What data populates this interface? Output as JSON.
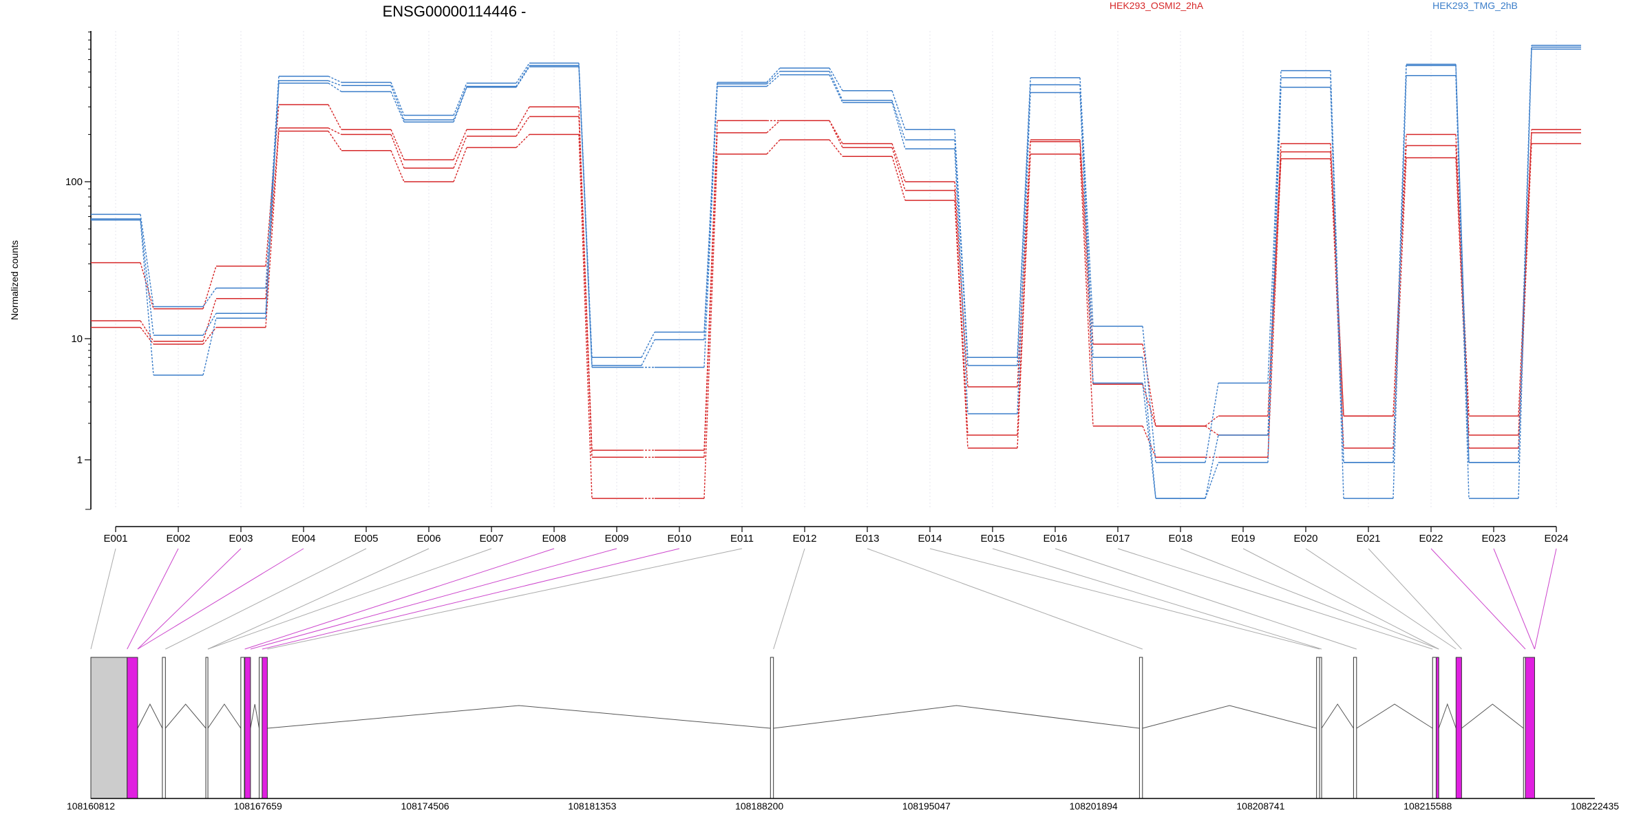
{
  "chart_data": {
    "type": "line",
    "title": "ENSG00000114446 -",
    "ylabel": "Normalized counts",
    "yscale": "log",
    "ylim": [
      0.48,
      900
    ],
    "yticks": [
      1,
      10,
      100
    ],
    "categories": [
      "E001",
      "E002",
      "E003",
      "E004",
      "E005",
      "E006",
      "E007",
      "E008",
      "E009",
      "E010",
      "E011",
      "E012",
      "E013",
      "E014",
      "E015",
      "E016",
      "E017",
      "E018",
      "E019",
      "E020",
      "E021",
      "E022",
      "E023",
      "E024"
    ],
    "legend": [
      {
        "name": "HEK293_OSMI2_2hA",
        "color": "#d62728"
      },
      {
        "name": "HEK293_TMG_2hB",
        "color": "#3a7dc9"
      }
    ],
    "series": [
      {
        "group": "HEK293_OSMI2_2hA",
        "color": "#d62728",
        "values": [
          30.5,
          15.5,
          29,
          310,
          215,
          138,
          215,
          300,
          1.2,
          1.2,
          245,
          245,
          175,
          100,
          4.0,
          185,
          9.0,
          1.9,
          2.3,
          175,
          2.3,
          200,
          2.3,
          215
        ]
      },
      {
        "group": "HEK293_OSMI2_2hA",
        "color": "#d62728",
        "values": [
          13,
          9.5,
          18,
          220,
          200,
          122,
          195,
          260,
          1.05,
          1.05,
          205,
          245,
          165,
          88,
          1.6,
          180,
          4.2,
          1.9,
          1.6,
          155,
          2.3,
          170,
          1.6,
          205
        ]
      },
      {
        "group": "HEK293_OSMI2_2hA",
        "color": "#d62728",
        "values": [
          11.8,
          9.0,
          11.8,
          210,
          158,
          100,
          165,
          200,
          0.48,
          0.48,
          150,
          185,
          145,
          76,
          1.25,
          150,
          1.9,
          1.05,
          1.05,
          140,
          1.25,
          142,
          1.25,
          175
        ]
      },
      {
        "group": "HEK293_TMG_2hB",
        "color": "#3a7dc9",
        "values": [
          62,
          16,
          21,
          470,
          430,
          265,
          425,
          570,
          7.0,
          11.0,
          430,
          530,
          380,
          215,
          7.0,
          460,
          12,
          0.95,
          4.3,
          510,
          0.95,
          560,
          0.95,
          740
        ]
      },
      {
        "group": "HEK293_TMG_2hB",
        "color": "#3a7dc9",
        "values": [
          58,
          10.5,
          14.5,
          440,
          410,
          248,
          405,
          550,
          6.0,
          9.8,
          420,
          505,
          330,
          185,
          6.0,
          415,
          7.0,
          0.48,
          1.6,
          460,
          0.95,
          550,
          0.95,
          720
        ]
      },
      {
        "group": "HEK293_TMG_2hB",
        "color": "#3a7dc9",
        "values": [
          57,
          5.0,
          13.5,
          425,
          375,
          240,
          400,
          540,
          5.8,
          5.8,
          405,
          480,
          320,
          162,
          2.4,
          370,
          4.3,
          0.48,
          0.95,
          400,
          0.48,
          475,
          0.48,
          700
        ]
      }
    ],
    "gene_model": {
      "coordinate_labels": [
        "108160812",
        "108167659",
        "108174506",
        "108181353",
        "108188200",
        "108195047",
        "108201894",
        "108208741",
        "108215588",
        "108222435"
      ],
      "coordinate_values": [
        108160812,
        108167659,
        108174506,
        108181353,
        108188200,
        108195047,
        108201894,
        108208741,
        108215588,
        108222435
      ],
      "exons": [
        {
          "start": 108160812,
          "end": 108162298,
          "color": "#cccccc"
        },
        {
          "start": 108162298,
          "end": 108162728,
          "color": "#e020e0"
        },
        {
          "start": 108163742,
          "end": 108163866,
          "color": "#ffffff"
        },
        {
          "start": 108165523,
          "end": 108165606,
          "color": "#ffffff"
        },
        {
          "start": 108166957,
          "end": 108167100,
          "color": "#ffffff"
        },
        {
          "start": 108167120,
          "end": 108167352,
          "color": "#e020e0"
        },
        {
          "start": 108167709,
          "end": 108167831,
          "color": "#ffffff"
        },
        {
          "start": 108167831,
          "end": 108168043,
          "color": "#e020e0"
        },
        {
          "start": 108188657,
          "end": 108188780,
          "color": "#ffffff"
        },
        {
          "start": 108203776,
          "end": 108203900,
          "color": "#ffffff"
        },
        {
          "start": 108211032,
          "end": 108211155,
          "color": "#ffffff"
        },
        {
          "start": 108211155,
          "end": 108211237,
          "color": "#ffffff"
        },
        {
          "start": 108212547,
          "end": 108212671,
          "color": "#ffffff"
        },
        {
          "start": 108215786,
          "end": 108215933,
          "color": "#ffffff"
        },
        {
          "start": 108215933,
          "end": 108216039,
          "color": "#e020e0"
        },
        {
          "start": 108216747,
          "end": 108216974,
          "color": "#e020e0"
        },
        {
          "start": 108219510,
          "end": 108219587,
          "color": "#ffffff"
        },
        {
          "start": 108219587,
          "end": 108219966,
          "color": "#e020e0"
        }
      ],
      "connector_colors": [
        "#aaaaaa",
        "#cc44cc",
        "#cc44cc",
        "#cc44cc",
        "#aaaaaa",
        "#aaaaaa",
        "#aaaaaa",
        "#cc44cc",
        "#cc44cc",
        "#cc44cc",
        "#aaaaaa",
        "#aaaaaa",
        "#aaaaaa",
        "#aaaaaa",
        "#aaaaaa",
        "#aaaaaa",
        "#aaaaaa",
        "#aaaaaa",
        "#aaaaaa",
        "#aaaaaa",
        "#aaaaaa",
        "#cc44cc",
        "#cc44cc",
        "#cc44cc"
      ],
      "connector_targets": [
        108160812,
        108162298,
        108162728,
        108162728,
        108163866,
        108165606,
        108165606,
        108167120,
        108167352,
        108167831,
        108168043,
        108188780,
        108203900,
        108211155,
        108211237,
        108212671,
        108215786,
        108216039,
        108216039,
        108216747,
        108216974,
        108219587,
        108219966,
        108219966
      ]
    }
  }
}
